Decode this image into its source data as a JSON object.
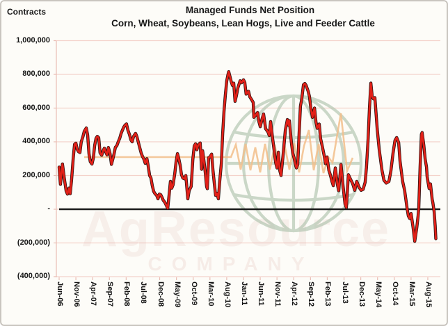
{
  "window": {
    "background": "#fdfcf8",
    "border_color": "#c9c5bf"
  },
  "header": {
    "contracts_label": "Contracts",
    "title_line1": "Managed Funds Net Position",
    "title_line2": "Corn, Wheat, Soybeans, Lean Hogs, Live and Feeder Cattle"
  },
  "chart_data": {
    "type": "line",
    "title": "Managed Funds Net Position",
    "subtitle": "Corn, Wheat, Soybeans, Lean Hogs, Live and Feeder Cattle",
    "legend": "none",
    "grid": "horizontal",
    "y_axis": {
      "title": "Contracts",
      "tick_labels": [
        "1,000,000",
        "800,000",
        "600,000",
        "400,000",
        "200,000",
        "-",
        "(200,000)",
        "(400,000)"
      ],
      "tick_values_thousands": [
        1000,
        800,
        600,
        400,
        200,
        0,
        -200,
        -400
      ],
      "min_thousands": -400,
      "max_thousands": 1000,
      "negative_format": "parentheses",
      "gridline_color": "#f4d2ca",
      "axis_line_color": "#e9bdb4"
    },
    "x_axis": {
      "tick_labels": [
        "Jun-06",
        "Nov-06",
        "Apr-07",
        "Sep-07",
        "Feb-08",
        "Jul-08",
        "Dec-08",
        "May-09",
        "Oct-09",
        "Mar-10",
        "Aug-10",
        "Jan-11",
        "Jun-11",
        "Nov-11",
        "Apr-12",
        "Sep-12",
        "Feb-13",
        "Jul-13",
        "Dec-13",
        "May-14",
        "Oct-14",
        "Mar-15",
        "Aug-15"
      ],
      "tick_interval_months": 5,
      "span_months": 113.7,
      "label_rotation_deg": 90
    },
    "zero_line": {
      "value": 0,
      "color": "#1b1b1b"
    },
    "series": [
      {
        "name": "Managed funds net position",
        "unit": "contracts",
        "value_scale": 1000,
        "line_color": "#e22018",
        "outline_color": "#2a1110",
        "points_month_value_thousands": [
          [
            0,
            250
          ],
          [
            0.4,
            148
          ],
          [
            1,
            268
          ],
          [
            1.5,
            190
          ],
          [
            2.1,
            108
          ],
          [
            2.5,
            90
          ],
          [
            2.9,
            125
          ],
          [
            3.3,
            92
          ],
          [
            3.7,
            170
          ],
          [
            4.2,
            300
          ],
          [
            4.6,
            385
          ],
          [
            5,
            392
          ],
          [
            5.4,
            355
          ],
          [
            5.8,
            342
          ],
          [
            6.2,
            336
          ],
          [
            6.6,
            400
          ],
          [
            7.1,
            430
          ],
          [
            7.5,
            462
          ],
          [
            8.1,
            482
          ],
          [
            8.5,
            440
          ],
          [
            8.9,
            330
          ],
          [
            9.3,
            282
          ],
          [
            9.8,
            268
          ],
          [
            10.2,
            302
          ],
          [
            10.6,
            378
          ],
          [
            11,
            420
          ],
          [
            11.4,
            432
          ],
          [
            11.8,
            424
          ],
          [
            12.2,
            335
          ],
          [
            12.7,
            320
          ],
          [
            13.1,
            346
          ],
          [
            13.5,
            362
          ],
          [
            13.9,
            340
          ],
          [
            14.3,
            322
          ],
          [
            14.7,
            366
          ],
          [
            15.2,
            330
          ],
          [
            15.6,
            266
          ],
          [
            16,
            296
          ],
          [
            16.4,
            330
          ],
          [
            16.8,
            368
          ],
          [
            17.2,
            376
          ],
          [
            17.6,
            398
          ],
          [
            18.1,
            422
          ],
          [
            18.5,
            450
          ],
          [
            18.9,
            470
          ],
          [
            19.3,
            488
          ],
          [
            19.7,
            500
          ],
          [
            20.1,
            506
          ],
          [
            20.5,
            470
          ],
          [
            21,
            442
          ],
          [
            21.4,
            412
          ],
          [
            21.8,
            400
          ],
          [
            22.2,
            432
          ],
          [
            22.8,
            450
          ],
          [
            23.2,
            430
          ],
          [
            23.7,
            392
          ],
          [
            24.1,
            362
          ],
          [
            24.5,
            332
          ],
          [
            24.9,
            312
          ],
          [
            25.3,
            296
          ],
          [
            25.7,
            272
          ],
          [
            26.2,
            300
          ],
          [
            26.6,
            252
          ],
          [
            27,
            200
          ],
          [
            27.4,
            185
          ],
          [
            27.8,
            140
          ],
          [
            28.2,
            106
          ],
          [
            28.6,
            92
          ],
          [
            29.1,
            82
          ],
          [
            29.5,
            62
          ],
          [
            29.9,
            90
          ],
          [
            30.3,
            86
          ],
          [
            30.7,
            70
          ],
          [
            31.1,
            52
          ],
          [
            31.5,
            42
          ],
          [
            32,
            22
          ],
          [
            32.4,
            5
          ],
          [
            32.8,
            80
          ],
          [
            33.2,
            165
          ],
          [
            33.6,
            125
          ],
          [
            34,
            145
          ],
          [
            34.5,
            210
          ],
          [
            34.9,
            280
          ],
          [
            35.3,
            330
          ],
          [
            35.7,
            300
          ],
          [
            36.1,
            262
          ],
          [
            36.5,
            205
          ],
          [
            36.9,
            185
          ],
          [
            37.4,
            180
          ],
          [
            37.8,
            200
          ],
          [
            38.4,
            62
          ],
          [
            38.8,
            110
          ],
          [
            39.4,
            135
          ],
          [
            39.9,
            295
          ],
          [
            40.3,
            375
          ],
          [
            40.7,
            388
          ],
          [
            41.1,
            353
          ],
          [
            41.5,
            381
          ],
          [
            42.1,
            393
          ],
          [
            42.5,
            237
          ],
          [
            42.8,
            347
          ],
          [
            43.2,
            290
          ],
          [
            43.6,
            217
          ],
          [
            44,
            135
          ],
          [
            44.2,
            122
          ],
          [
            44.6,
            306
          ],
          [
            45,
            310
          ],
          [
            45.5,
            327
          ],
          [
            45.9,
            233
          ],
          [
            46.3,
            152
          ],
          [
            46.7,
            82
          ],
          [
            47.1,
            94
          ],
          [
            47.5,
            62
          ],
          [
            47.9,
            163
          ],
          [
            48.4,
            273
          ],
          [
            48.8,
            449
          ],
          [
            49.2,
            580
          ],
          [
            49.6,
            680
          ],
          [
            50,
            760
          ],
          [
            50.4,
            800
          ],
          [
            50.6,
            816
          ],
          [
            51.3,
            760
          ],
          [
            51.7,
            735
          ],
          [
            52.1,
            748
          ],
          [
            52.5,
            640
          ],
          [
            52.9,
            675
          ],
          [
            53.3,
            718
          ],
          [
            54,
            762
          ],
          [
            54.4,
            750
          ],
          [
            55,
            768
          ],
          [
            55.4,
            752
          ],
          [
            55.8,
            683
          ],
          [
            56.5,
            700
          ],
          [
            56.9,
            667
          ],
          [
            57.5,
            648
          ],
          [
            57.9,
            633
          ],
          [
            58.1,
            545
          ],
          [
            58.7,
            560
          ],
          [
            59.2,
            573
          ],
          [
            59.6,
            520
          ],
          [
            60,
            490
          ],
          [
            60.6,
            540
          ],
          [
            61,
            565
          ],
          [
            61.6,
            478
          ],
          [
            62.3,
            458
          ],
          [
            62.7,
            437
          ],
          [
            63.1,
            520
          ],
          [
            63.7,
            420
          ],
          [
            64.1,
            358
          ],
          [
            64.6,
            278
          ],
          [
            65,
            245
          ],
          [
            65.4,
            338
          ],
          [
            65.8,
            233
          ],
          [
            66.2,
            200
          ],
          [
            66.8,
            315
          ],
          [
            67.5,
            470
          ],
          [
            68.1,
            532
          ],
          [
            68.5,
            498
          ],
          [
            68.7,
            525
          ],
          [
            69.3,
            395
          ],
          [
            69.7,
            333
          ],
          [
            70.1,
            305
          ],
          [
            70.6,
            257
          ],
          [
            70.8,
            245
          ],
          [
            71.2,
            265
          ],
          [
            71.6,
            450
          ],
          [
            72,
            612
          ],
          [
            72.4,
            655
          ],
          [
            72.9,
            738
          ],
          [
            73.3,
            746
          ],
          [
            73.7,
            734
          ],
          [
            74.3,
            700
          ],
          [
            74.7,
            668
          ],
          [
            75.1,
            600
          ],
          [
            75.6,
            545
          ],
          [
            76.2,
            600
          ],
          [
            76.6,
            520
          ],
          [
            77,
            480
          ],
          [
            77.6,
            505
          ],
          [
            78,
            420
          ],
          [
            78.7,
            355
          ],
          [
            79.1,
            315
          ],
          [
            79.5,
            270
          ],
          [
            79.9,
            310
          ],
          [
            80.5,
            230
          ],
          [
            80.9,
            205
          ],
          [
            81.4,
            165
          ],
          [
            81.8,
            140
          ],
          [
            82.4,
            245
          ],
          [
            83,
            150
          ],
          [
            83.4,
            110
          ],
          [
            84.1,
            265
          ],
          [
            84.7,
            140
          ],
          [
            85.3,
            30
          ],
          [
            85.7,
            10
          ],
          [
            86.3,
            205
          ],
          [
            87,
            175
          ],
          [
            87.6,
            150
          ],
          [
            88.2,
            112
          ],
          [
            88.8,
            165
          ],
          [
            89.5,
            130
          ],
          [
            90.1,
            112
          ],
          [
            90.7,
            118
          ],
          [
            91.3,
            160
          ],
          [
            91.7,
            250
          ],
          [
            92.2,
            420
          ],
          [
            92.6,
            600
          ],
          [
            93,
            748
          ],
          [
            93.4,
            668
          ],
          [
            93.8,
            655
          ],
          [
            94.2,
            662
          ],
          [
            94.9,
            478
          ],
          [
            95.5,
            355
          ],
          [
            96.3,
            233
          ],
          [
            96.9,
            172
          ],
          [
            97.6,
            155
          ],
          [
            98.4,
            165
          ],
          [
            99,
            230
          ],
          [
            99.6,
            330
          ],
          [
            100.2,
            408
          ],
          [
            100.7,
            425
          ],
          [
            101.3,
            395
          ],
          [
            101.7,
            287
          ],
          [
            102.5,
            165
          ],
          [
            103.1,
            110
          ],
          [
            103.8,
            8
          ],
          [
            104.2,
            -40
          ],
          [
            104.6,
            -55
          ],
          [
            105,
            -25
          ],
          [
            105.6,
            -108
          ],
          [
            106.1,
            -190
          ],
          [
            106.7,
            -110
          ],
          [
            107.1,
            -40
          ],
          [
            107.3,
            8
          ],
          [
            107.7,
            250
          ],
          [
            108.1,
            445
          ],
          [
            108.3,
            455
          ],
          [
            108.8,
            380
          ],
          [
            109.2,
            300
          ],
          [
            109.6,
            250
          ],
          [
            109.8,
            193
          ],
          [
            110.4,
            123
          ],
          [
            110.8,
            150
          ],
          [
            111.3,
            60
          ],
          [
            111.5,
            40
          ],
          [
            111.9,
            -15
          ],
          [
            112.2,
            -100
          ],
          [
            112.4,
            -175
          ]
        ]
      }
    ],
    "watermark": {
      "kind": "globe-logo",
      "globe_color": "#a9bfa8",
      "zigzag_color": "#f2be8b",
      "text_line1": "AgResource",
      "text_line2": "COMPANY",
      "text_color": "#d8a89f"
    }
  }
}
